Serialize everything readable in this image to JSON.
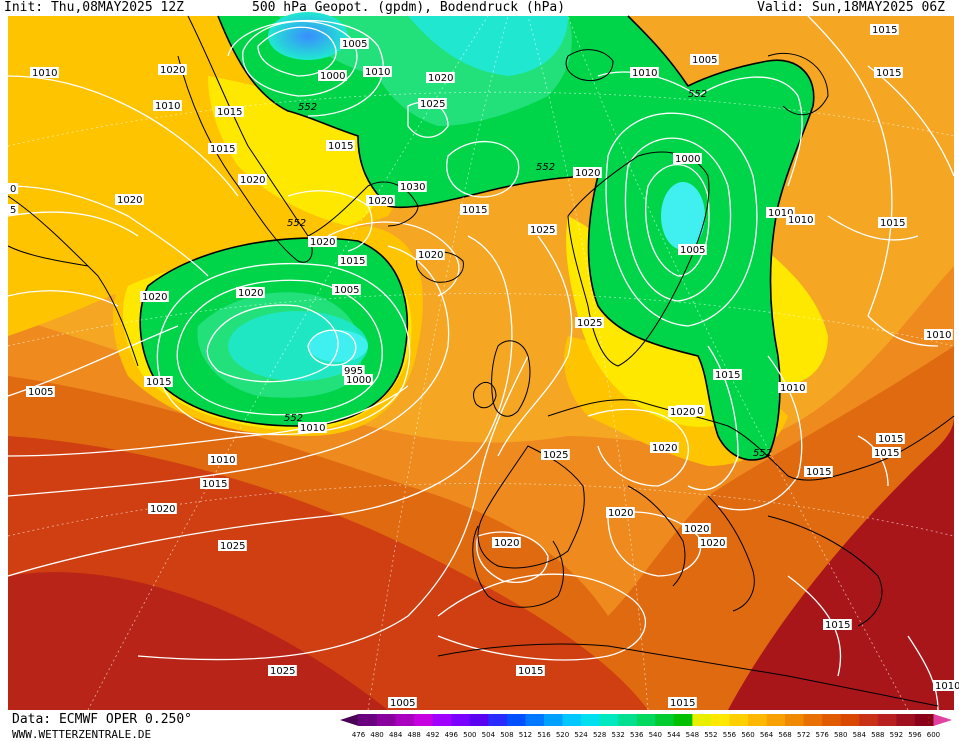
{
  "header": {
    "init": "Init: Thu,08MAY2025 12Z",
    "title": "500 hPa Geopot. (gpdm), Bodendruck (hPa)",
    "valid": "Valid: Sun,18MAY2025 06Z"
  },
  "footer": {
    "data_source": "Data: ECMWF OPER 0.250°",
    "website": "WWW.WETTERZENTRALE.DE"
  },
  "colorbar": {
    "ticks": [
      "476",
      "480",
      "484",
      "488",
      "492",
      "496",
      "500",
      "504",
      "508",
      "512",
      "516",
      "520",
      "524",
      "528",
      "532",
      "536",
      "540",
      "544",
      "548",
      "552",
      "556",
      "560",
      "564",
      "568",
      "572",
      "576",
      "580",
      "584",
      "588",
      "592",
      "596",
      "600"
    ],
    "colors": [
      "#4b0057",
      "#6a0080",
      "#8a009f",
      "#a900c0",
      "#c800e0",
      "#a000ff",
      "#7a00ff",
      "#5a00f0",
      "#2a2aff",
      "#0050ff",
      "#0078ff",
      "#00a0ff",
      "#00c8ff",
      "#00e0ee",
      "#00e8c0",
      "#00e090",
      "#00d860",
      "#00cc30",
      "#00c000",
      "#e8f000",
      "#ffe800",
      "#ffd000",
      "#ffb800",
      "#f8a000",
      "#f08800",
      "#e87000",
      "#e05a00",
      "#d84800",
      "#c83018",
      "#b82020",
      "#a01020",
      "#8a0018",
      "#e040a0"
    ]
  },
  "map": {
    "colors": {
      "orange_light": "#f5a623",
      "orange_mid": "#ef8a1e",
      "orange_dark": "#e06a10",
      "red": "#cf3f12",
      "red_dark": "#b82418",
      "yellow": "#ffe800",
      "yellow_orange": "#ffc400",
      "green": "#00d54a",
      "green_light": "#22e07a",
      "cyan": "#20e8d0",
      "cyan_light": "#40f0f0",
      "blue": "#3a8cff",
      "coast": "#000000",
      "isobar": "#ffffff"
    },
    "isobar_labels": [
      {
        "text": "1005"
      },
      {
        "text": "1000"
      },
      {
        "text": "1010"
      },
      {
        "text": "1020"
      },
      {
        "text": "1025"
      },
      {
        "text": "1020"
      },
      {
        "text": "1010"
      },
      {
        "text": "552"
      },
      {
        "text": "1005"
      },
      {
        "text": "1010"
      },
      {
        "text": "1015"
      },
      {
        "text": "1020"
      },
      {
        "text": "1010"
      },
      {
        "text": "1015"
      },
      {
        "text": "1015"
      },
      {
        "text": "552"
      },
      {
        "text": "1015"
      },
      {
        "text": "1020"
      },
      {
        "text": "1030"
      },
      {
        "text": "1020"
      },
      {
        "text": "1015"
      },
      {
        "text": "552"
      },
      {
        "text": "1025"
      },
      {
        "text": "1000"
      },
      {
        "text": "1010"
      },
      {
        "text": "1010"
      },
      {
        "text": "1015"
      },
      {
        "text": "1020"
      },
      {
        "text": "0"
      },
      {
        "text": "5"
      },
      {
        "text": "1020"
      },
      {
        "text": "552"
      },
      {
        "text": "1020"
      },
      {
        "text": "1015"
      },
      {
        "text": "1020"
      },
      {
        "text": "1025"
      },
      {
        "text": "1005"
      },
      {
        "text": "1010"
      },
      {
        "text": "1020"
      },
      {
        "text": "1005"
      },
      {
        "text": "1015"
      },
      {
        "text": "1020"
      },
      {
        "text": "995"
      },
      {
        "text": "1000"
      },
      {
        "text": "1005"
      },
      {
        "text": "552"
      },
      {
        "text": "1010"
      },
      {
        "text": "1015"
      },
      {
        "text": "1015"
      },
      {
        "text": "1010"
      },
      {
        "text": "1020"
      },
      {
        "text": "1020"
      },
      {
        "text": "1025"
      },
      {
        "text": "552"
      },
      {
        "text": "1015"
      },
      {
        "text": "1015"
      },
      {
        "text": "1015"
      },
      {
        "text": "1010"
      },
      {
        "text": "1015"
      },
      {
        "text": "1020"
      },
      {
        "text": "1020"
      },
      {
        "text": "1020"
      },
      {
        "text": "1020"
      },
      {
        "text": "1025"
      },
      {
        "text": "1025"
      },
      {
        "text": "1015"
      },
      {
        "text": "1015"
      },
      {
        "text": "1010"
      },
      {
        "text": "1020"
      },
      {
        "text": "1015"
      },
      {
        "text": "1005"
      }
    ]
  }
}
